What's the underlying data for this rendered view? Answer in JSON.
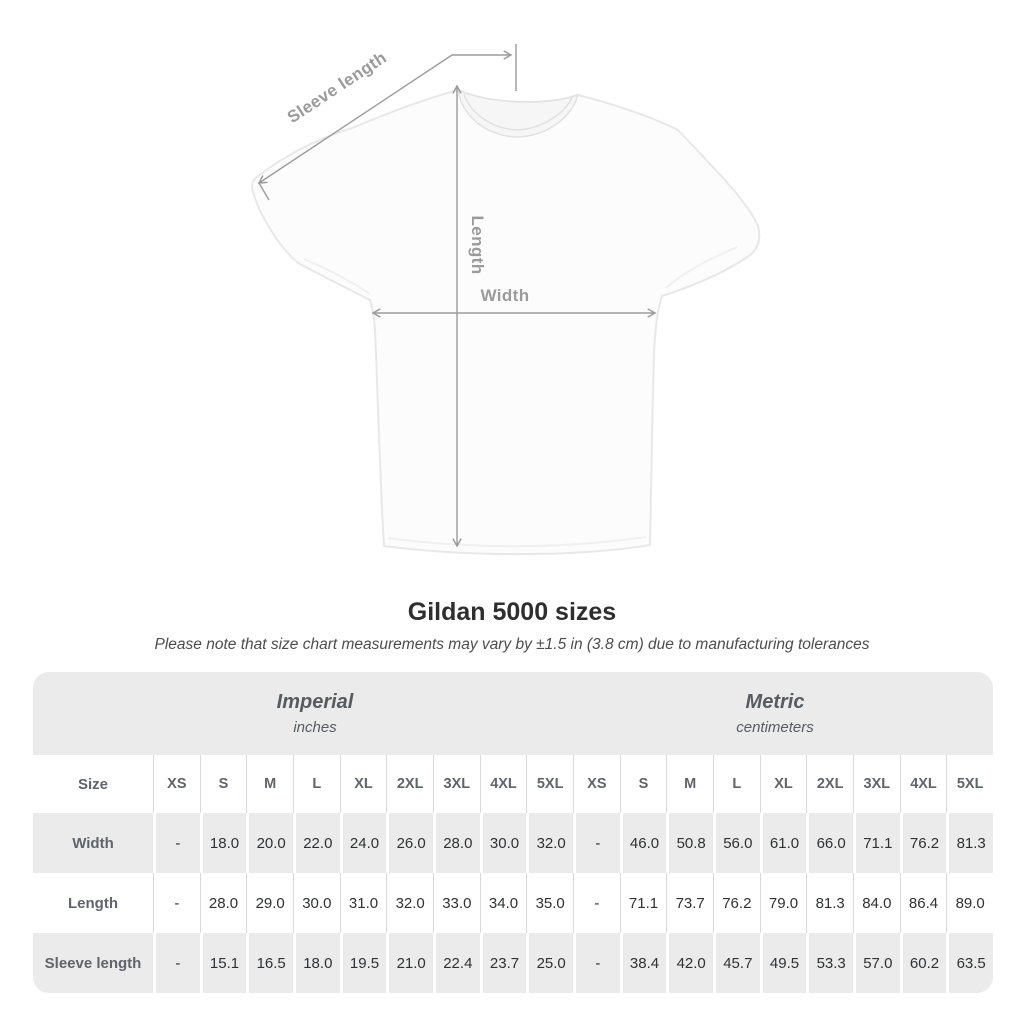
{
  "title": "Gildan 5000 sizes",
  "subtitle": "Please note that size chart measurements may vary by ±1.5 in (3.8 cm) due to manufacturing tolerances",
  "diagram": {
    "labels": {
      "sleeve_length": "Sleeve length",
      "length": "Length",
      "width": "Width"
    },
    "annotation_color": "#9b9b9b"
  },
  "size_chart": {
    "sections": [
      {
        "label": "Imperial",
        "unit": "inches"
      },
      {
        "label": "Metric",
        "unit": "centimeters"
      }
    ],
    "size_row_label": "Size",
    "sizes": [
      "XS",
      "S",
      "M",
      "L",
      "XL",
      "2XL",
      "3XL",
      "4XL",
      "5XL"
    ],
    "rows": [
      {
        "label": "Width",
        "imperial": [
          "-",
          "18.0",
          "20.0",
          "22.0",
          "24.0",
          "26.0",
          "28.0",
          "30.0",
          "32.0"
        ],
        "metric": [
          "-",
          "46.0",
          "50.8",
          "56.0",
          "61.0",
          "66.0",
          "71.1",
          "76.2",
          "81.3"
        ]
      },
      {
        "label": "Length",
        "imperial": [
          "-",
          "28.0",
          "29.0",
          "30.0",
          "31.0",
          "32.0",
          "33.0",
          "34.0",
          "35.0"
        ],
        "metric": [
          "-",
          "71.1",
          "73.7",
          "76.2",
          "79.0",
          "81.3",
          "84.0",
          "86.4",
          "89.0"
        ]
      },
      {
        "label": "Sleeve length",
        "imperial": [
          "-",
          "15.1",
          "16.5",
          "18.0",
          "19.5",
          "21.0",
          "22.4",
          "23.7",
          "25.0"
        ],
        "metric": [
          "-",
          "38.4",
          "42.0",
          "45.7",
          "49.5",
          "53.3",
          "57.0",
          "60.2",
          "63.5"
        ]
      }
    ],
    "colors": {
      "band_gray": "#ebebeb",
      "separator_on_white": "#d9d9d9",
      "separator_on_gray": "#ffffff",
      "heading_text": "#565c60",
      "value_text": "#2f3133"
    }
  }
}
